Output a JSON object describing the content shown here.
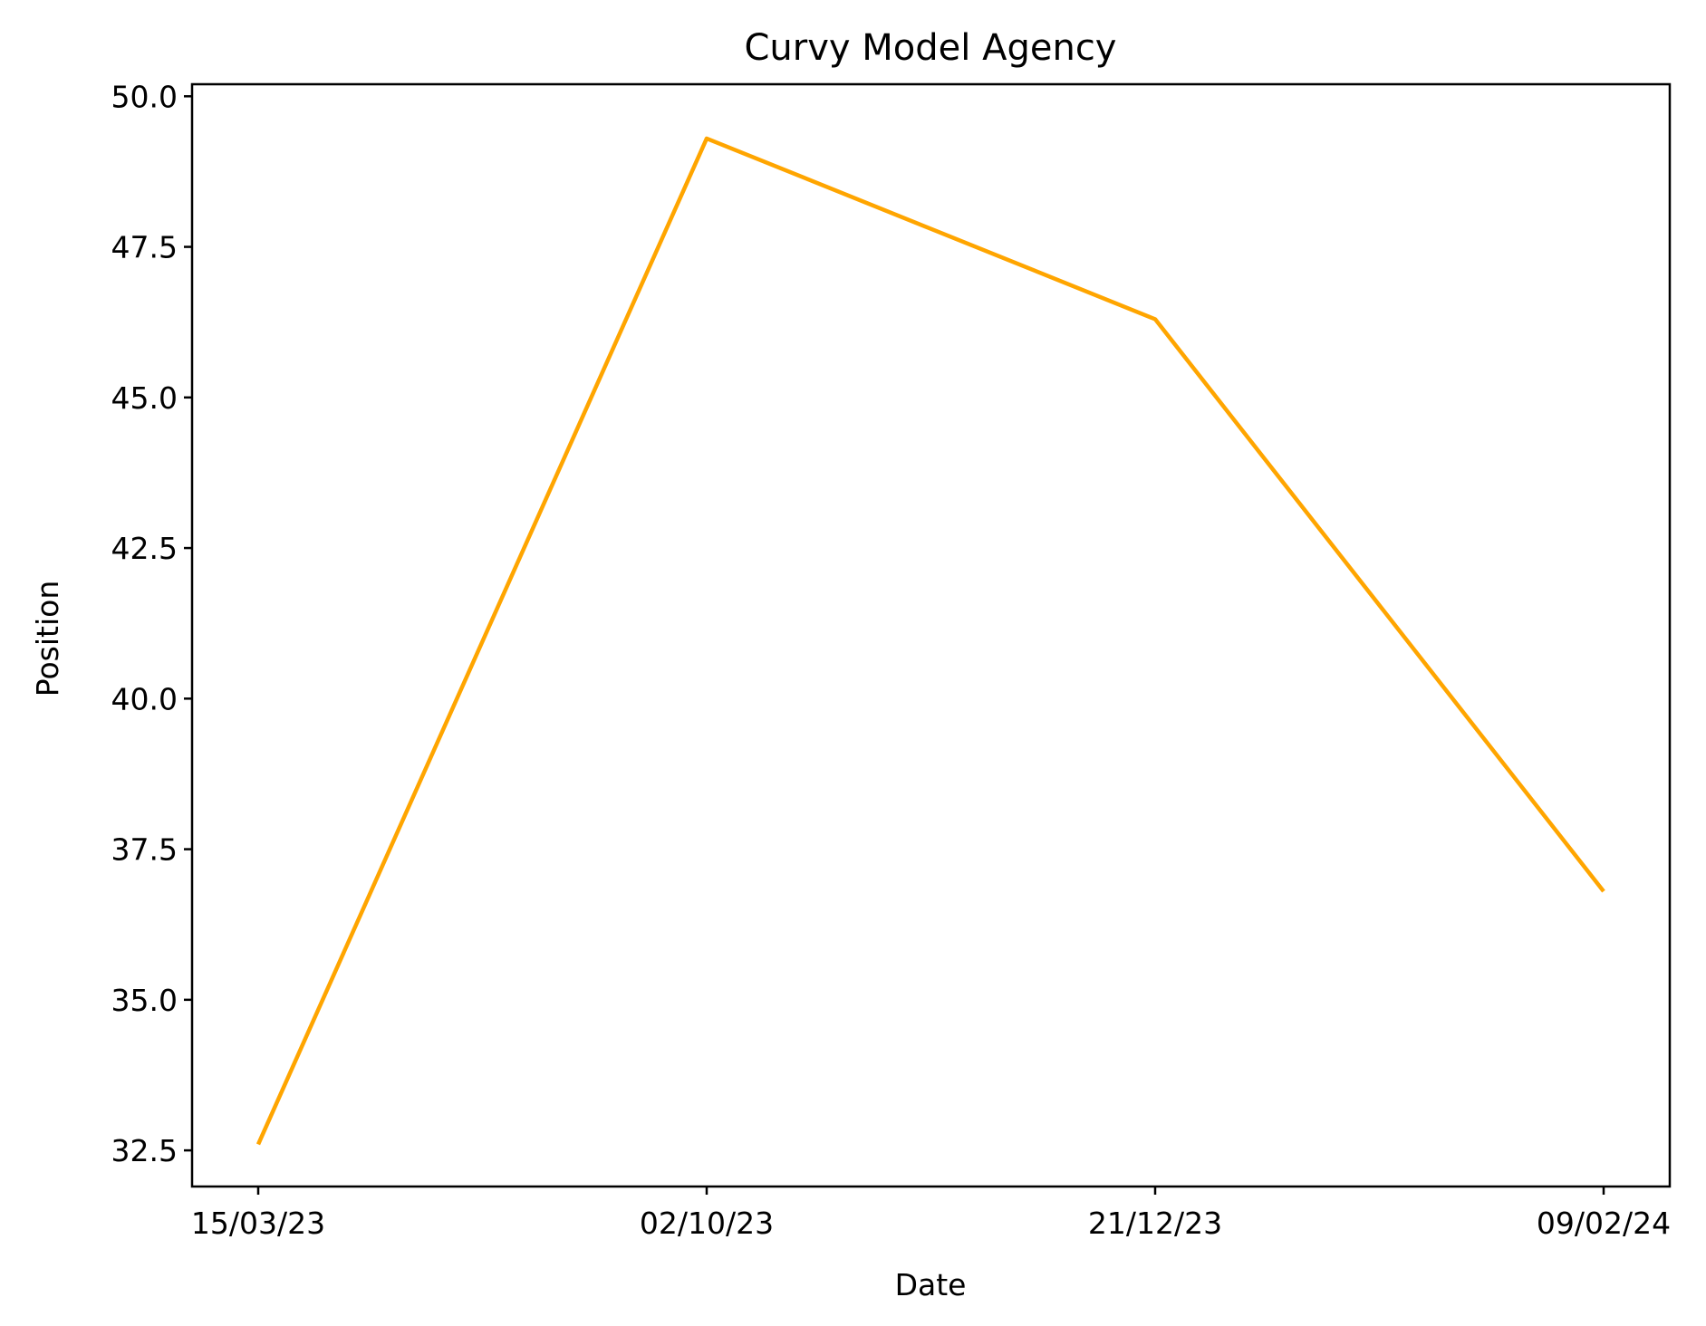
{
  "chart_data": {
    "type": "line",
    "title": "Curvy Model Agency",
    "xlabel": "Date",
    "ylabel": "Position",
    "categories": [
      "15/03/23",
      "02/10/23",
      "21/12/23",
      "09/02/24"
    ],
    "series": [
      {
        "color": "#FFA500",
        "values": [
          32.6,
          49.3,
          46.3,
          36.8
        ]
      }
    ],
    "yticks": [
      32.5,
      35.0,
      37.5,
      40.0,
      42.5,
      45.0,
      47.5,
      50.0
    ],
    "ytick_labels": [
      "32.5",
      "35.0",
      "37.5",
      "40.0",
      "42.5",
      "45.0",
      "47.5",
      "50.0"
    ],
    "ylim": [
      31.9,
      50.2
    ],
    "grid": false,
    "legend": "none"
  }
}
